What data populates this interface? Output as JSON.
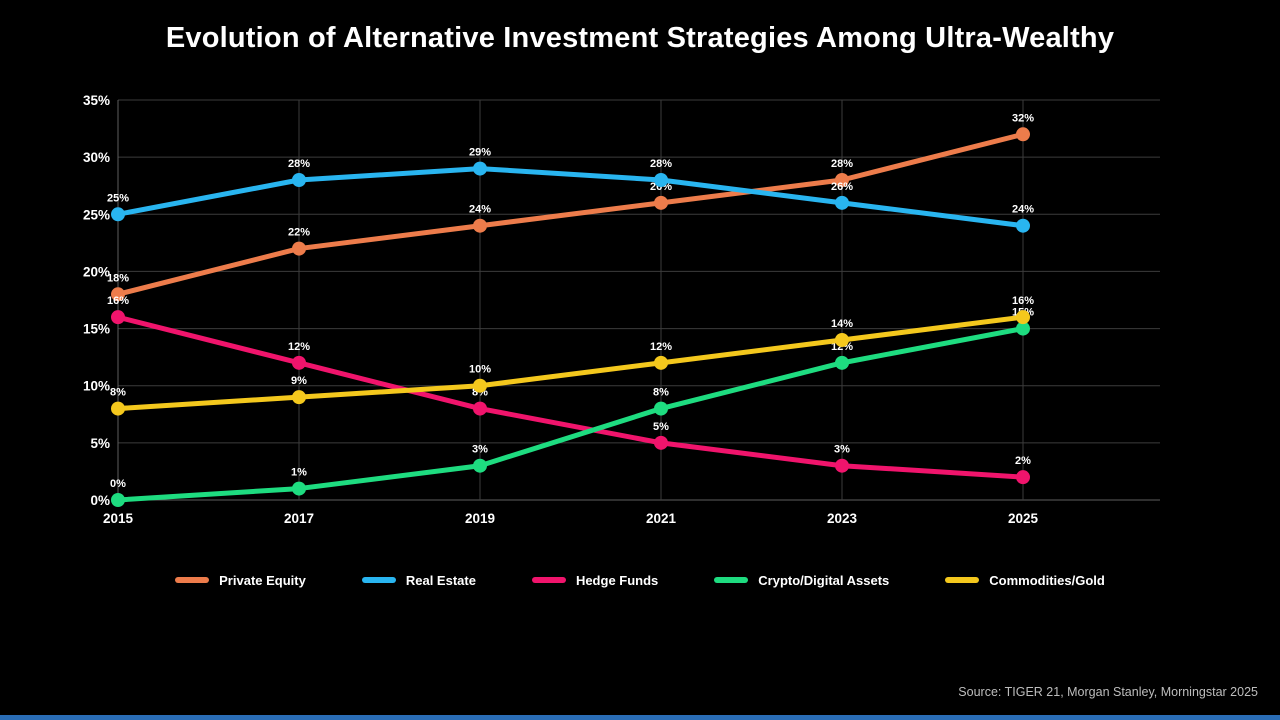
{
  "title": "Evolution of Alternative Investment Strategies Among Ultra-Wealthy",
  "source_note": "Source: TIGER 21, Morgan Stanley, Morningstar 2025",
  "colors": {
    "background": "#000000",
    "grid": "#3c3c3c",
    "axis": "#5e5e5e",
    "tick_text": "#ffffff",
    "data_label_text": "#ffffff",
    "source_text": "#bdbdbd",
    "bottom_bar": "#2a6db6"
  },
  "chart_data": {
    "type": "line",
    "title": "Evolution of Alternative Investment Strategies Among Ultra-Wealthy",
    "categories": [
      "2015",
      "2017",
      "2019",
      "2021",
      "2023",
      "2025"
    ],
    "series": [
      {
        "name": "Private Equity",
        "color": "#ED7C4B",
        "values": [
          18,
          22,
          24,
          26,
          28,
          32
        ]
      },
      {
        "name": "Real Estate",
        "color": "#29B5F0",
        "values": [
          25,
          28,
          29,
          28,
          26,
          24
        ]
      },
      {
        "name": "Hedge Funds",
        "color": "#F0146C",
        "values": [
          16,
          12,
          8,
          5,
          3,
          2
        ]
      },
      {
        "name": "Crypto/Digital Assets",
        "color": "#1EDC80",
        "values": [
          0,
          1,
          3,
          8,
          12,
          15
        ]
      },
      {
        "name": "Commodities/Gold",
        "color": "#F4C81D",
        "values": [
          8,
          9,
          10,
          12,
          14,
          16
        ]
      }
    ],
    "xlabel": "",
    "ylabel": "",
    "ylim": [
      0,
      35
    ],
    "ytick_step": 5,
    "ytick_suffix": "%",
    "data_label_suffix": "%",
    "grid": true,
    "data_labels": true,
    "legend_position": "bottom"
  }
}
